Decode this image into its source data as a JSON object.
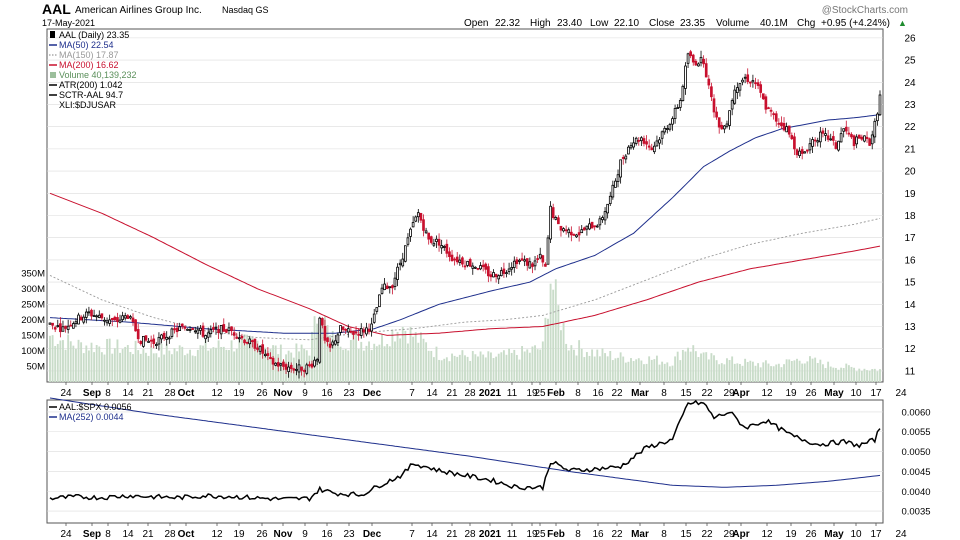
{
  "header": {
    "symbol": "AAL",
    "company": "American Airlines Group Inc.",
    "exchange": "Nasdaq GS",
    "date": "17-May-2021",
    "watermark": "@StockCharts.com",
    "open_label": "Open",
    "open": "22.32",
    "high_label": "High",
    "high": "23.40",
    "low_label": "Low",
    "low": "22.10",
    "close_label": "Close",
    "close": "23.35",
    "volume_label": "Volume",
    "volume": "40.1M",
    "chg_label": "Chg",
    "chg": "+0.95 (+4.24%)",
    "chg_arrow": "▲"
  },
  "legend": [
    {
      "label": "AAL (Daily) 23.35",
      "color": "#000000",
      "style": "candle-icon"
    },
    {
      "label": "MA(50) 22.54",
      "color": "#1e2f8c",
      "style": "solid"
    },
    {
      "label": "MA(150) 17.87",
      "color": "#999999",
      "style": "dotted"
    },
    {
      "label": "MA(200) 16.62",
      "color": "#c8102e",
      "style": "solid"
    },
    {
      "label": "Volume 40,139,232",
      "color": "#9cbf9c",
      "style": "volume-icon"
    },
    {
      "label": "ATR(200) 1.042",
      "color": "#000000",
      "style": "solid"
    },
    {
      "label": "SCTR-AAL 94.7",
      "color": "#000000",
      "style": "solid"
    },
    {
      "label": "XLI:$DJUSAR",
      "color": "#000000",
      "style": "none"
    }
  ],
  "lower_legend": [
    {
      "label": "AAL:$SPX 0.0056",
      "color": "#000000"
    },
    {
      "label": "MA(252) 0.0044",
      "color": "#1e2f8c"
    }
  ],
  "colors": {
    "up": "#000000",
    "down": "#c8102e",
    "volume": "#c9dcc9",
    "ma50": "#1e2f8c",
    "ma150": "#999999",
    "ma200": "#c8102e",
    "grid": "#dcdcdc"
  },
  "chart_data": [
    {
      "type": "candlestick",
      "title": "AAL (Daily)",
      "y_ticks": [
        "26",
        "25",
        "24",
        "23",
        "22",
        "21",
        "20",
        "19",
        "18",
        "17",
        "16",
        "15",
        "14",
        "13",
        "12",
        "11"
      ],
      "ylim": [
        10.5,
        26.4
      ],
      "volume_ticks": [
        "350M",
        "300M",
        "250M",
        "200M",
        "150M",
        "100M",
        "50M"
      ],
      "x_ticks": [
        "24",
        "Sep",
        "8",
        "14",
        "21",
        "28",
        "Oct",
        "12",
        "19",
        "26",
        "Nov",
        "9",
        "16",
        "23",
        "Dec",
        "7",
        "14",
        "21",
        "28",
        "2021",
        "11",
        "19",
        "25",
        "Feb",
        "8",
        "16",
        "22",
        "Mar",
        "8",
        "15",
        "22",
        "29",
        "Apr",
        "12",
        "19",
        "26",
        "May",
        "10",
        "17",
        "24"
      ],
      "x_bold": [
        "Sep",
        "Oct",
        "Nov",
        "Dec",
        "2021",
        "Feb",
        "Mar",
        "Apr",
        "May"
      ],
      "price_anchors": [
        [
          0,
          13.1
        ],
        [
          5,
          12.9
        ],
        [
          10,
          13.3
        ],
        [
          15,
          13.6
        ],
        [
          20,
          13.4
        ],
        [
          25,
          13.2
        ],
        [
          30,
          13.5
        ],
        [
          35,
          12.4
        ],
        [
          40,
          12.3
        ],
        [
          45,
          12.6
        ],
        [
          50,
          12.9
        ],
        [
          55,
          13.0
        ],
        [
          60,
          12.6
        ],
        [
          65,
          12.9
        ],
        [
          70,
          12.8
        ],
        [
          75,
          12.4
        ],
        [
          80,
          12.1
        ],
        [
          85,
          11.4
        ],
        [
          90,
          11.2
        ],
        [
          95,
          11.1
        ],
        [
          100,
          11.2
        ],
        [
          103,
          11.6
        ],
        [
          104,
          13.5
        ],
        [
          106,
          12.3
        ],
        [
          108,
          12.0
        ],
        [
          112,
          12.9
        ],
        [
          116,
          12.7
        ],
        [
          120,
          12.8
        ],
        [
          124,
          13.0
        ],
        [
          128,
          14.7
        ],
        [
          132,
          14.9
        ],
        [
          136,
          16.2
        ],
        [
          140,
          17.6
        ],
        [
          142,
          18.1
        ],
        [
          146,
          16.9
        ],
        [
          150,
          16.8
        ],
        [
          155,
          16.1
        ],
        [
          160,
          15.9
        ],
        [
          165,
          15.7
        ],
        [
          170,
          15.3
        ],
        [
          175,
          15.5
        ],
        [
          180,
          16.0
        ],
        [
          183,
          15.9
        ],
        [
          186,
          15.8
        ],
        [
          189,
          16.1
        ],
        [
          191,
          15.6
        ],
        [
          193,
          18.3
        ],
        [
          196,
          17.5
        ],
        [
          200,
          17.3
        ],
        [
          204,
          17.2
        ],
        [
          208,
          17.5
        ],
        [
          212,
          17.7
        ],
        [
          216,
          18.8
        ],
        [
          220,
          20.4
        ],
        [
          224,
          21.3
        ],
        [
          228,
          21.5
        ],
        [
          232,
          21.0
        ],
        [
          236,
          21.7
        ],
        [
          240,
          22.4
        ],
        [
          243,
          23.2
        ],
        [
          246,
          25.3
        ],
        [
          248,
          24.9
        ],
        [
          252,
          25.0
        ],
        [
          255,
          23.2
        ],
        [
          258,
          22.0
        ],
        [
          261,
          22.2
        ],
        [
          264,
          23.8
        ],
        [
          268,
          24.2
        ],
        [
          272,
          24.0
        ],
        [
          276,
          22.9
        ],
        [
          280,
          22.3
        ],
        [
          284,
          21.9
        ],
        [
          288,
          20.9
        ],
        [
          290,
          20.7
        ],
        [
          294,
          21.4
        ],
        [
          297,
          21.6
        ],
        [
          300,
          21.5
        ],
        [
          303,
          21.1
        ],
        [
          306,
          21.9
        ],
        [
          310,
          21.3
        ],
        [
          313,
          21.5
        ],
        [
          316,
          21.3
        ],
        [
          318,
          22.1
        ],
        [
          320,
          23.35
        ]
      ],
      "volume_anchors": [
        [
          0,
          150
        ],
        [
          10,
          120
        ],
        [
          20,
          115
        ],
        [
          30,
          110
        ],
        [
          40,
          100
        ],
        [
          50,
          105
        ],
        [
          60,
          110
        ],
        [
          70,
          120
        ],
        [
          80,
          130
        ],
        [
          90,
          95
        ],
        [
          100,
          105
        ],
        [
          104,
          250
        ],
        [
          108,
          140
        ],
        [
          120,
          130
        ],
        [
          128,
          135
        ],
        [
          132,
          160
        ],
        [
          136,
          180
        ],
        [
          140,
          150
        ],
        [
          150,
          90
        ],
        [
          160,
          85
        ],
        [
          170,
          80
        ],
        [
          180,
          90
        ],
        [
          190,
          110
        ],
        [
          193,
          340
        ],
        [
          196,
          230
        ],
        [
          200,
          120
        ],
        [
          210,
          95
        ],
        [
          220,
          80
        ],
        [
          230,
          75
        ],
        [
          240,
          65
        ],
        [
          246,
          120
        ],
        [
          252,
          80
        ],
        [
          260,
          70
        ],
        [
          270,
          60
        ],
        [
          280,
          55
        ],
        [
          290,
          75
        ],
        [
          300,
          55
        ],
        [
          310,
          45
        ],
        [
          320,
          40
        ]
      ],
      "ma50_anchors": [
        [
          0,
          13.4
        ],
        [
          30,
          13.2
        ],
        [
          60,
          12.9
        ],
        [
          90,
          12.7
        ],
        [
          110,
          12.7
        ],
        [
          125,
          12.9
        ],
        [
          135,
          13.3
        ],
        [
          150,
          14.0
        ],
        [
          170,
          14.6
        ],
        [
          185,
          15.0
        ],
        [
          195,
          15.6
        ],
        [
          210,
          16.2
        ],
        [
          225,
          17.2
        ],
        [
          240,
          18.8
        ],
        [
          252,
          20.2
        ],
        [
          262,
          20.9
        ],
        [
          272,
          21.5
        ],
        [
          282,
          21.9
        ],
        [
          300,
          22.3
        ],
        [
          310,
          22.4
        ],
        [
          320,
          22.54
        ]
      ],
      "ma150_anchors": [
        [
          0,
          15.3
        ],
        [
          20,
          14.2
        ],
        [
          40,
          13.4
        ],
        [
          60,
          12.8
        ],
        [
          80,
          12.5
        ],
        [
          100,
          12.4
        ],
        [
          118,
          12.7
        ],
        [
          140,
          12.9
        ],
        [
          160,
          13.2
        ],
        [
          175,
          13.3
        ],
        [
          190,
          13.5
        ],
        [
          210,
          14.2
        ],
        [
          230,
          15.1
        ],
        [
          250,
          16.0
        ],
        [
          270,
          16.7
        ],
        [
          290,
          17.2
        ],
        [
          310,
          17.6
        ],
        [
          320,
          17.87
        ]
      ],
      "ma200_anchors": [
        [
          0,
          19.0
        ],
        [
          20,
          18.1
        ],
        [
          40,
          17.0
        ],
        [
          60,
          15.8
        ],
        [
          80,
          14.7
        ],
        [
          100,
          13.8
        ],
        [
          115,
          13.0
        ],
        [
          130,
          12.6
        ],
        [
          150,
          12.7
        ],
        [
          170,
          12.9
        ],
        [
          190,
          13.0
        ],
        [
          210,
          13.5
        ],
        [
          230,
          14.2
        ],
        [
          250,
          15.0
        ],
        [
          270,
          15.6
        ],
        [
          290,
          16.0
        ],
        [
          310,
          16.4
        ],
        [
          320,
          16.62
        ]
      ]
    },
    {
      "type": "line",
      "title": "AAL:$SPX",
      "y_ticks": [
        "0.0060",
        "0.0055",
        "0.0050",
        "0.0045",
        "0.0040",
        "0.0035"
      ],
      "ylim": [
        0.0032,
        0.0063
      ],
      "series": [
        {
          "name": "AAL:$SPX",
          "color": "#000000",
          "anchors": [
            [
              0,
              0.00382
            ],
            [
              10,
              0.00386
            ],
            [
              20,
              0.00384
            ],
            [
              30,
              0.00389
            ],
            [
              40,
              0.00386
            ],
            [
              50,
              0.00384
            ],
            [
              60,
              0.00389
            ],
            [
              70,
              0.00387
            ],
            [
              80,
              0.00383
            ],
            [
              90,
              0.0038
            ],
            [
              100,
              0.00382
            ],
            [
              104,
              0.00405
            ],
            [
              110,
              0.00395
            ],
            [
              120,
              0.00391
            ],
            [
              128,
              0.00418
            ],
            [
              136,
              0.00442
            ],
            [
              140,
              0.0047
            ],
            [
              146,
              0.0046
            ],
            [
              150,
              0.00452
            ],
            [
              160,
              0.0044
            ],
            [
              170,
              0.00428
            ],
            [
              180,
              0.0041
            ],
            [
              190,
              0.0041
            ],
            [
              193,
              0.00475
            ],
            [
              200,
              0.00452
            ],
            [
              210,
              0.00456
            ],
            [
              220,
              0.00462
            ],
            [
              230,
              0.0051
            ],
            [
              240,
              0.0053
            ],
            [
              246,
              0.00622
            ],
            [
              252,
              0.00622
            ],
            [
              256,
              0.00585
            ],
            [
              262,
              0.006
            ],
            [
              268,
              0.0056
            ],
            [
              276,
              0.00578
            ],
            [
              286,
              0.0054
            ],
            [
              296,
              0.00518
            ],
            [
              306,
              0.00525
            ],
            [
              312,
              0.00515
            ],
            [
              318,
              0.0053
            ],
            [
              320,
              0.0056
            ]
          ]
        },
        {
          "name": "MA(252)",
          "color": "#1e2f8c",
          "anchors": [
            [
              0,
              0.00635
            ],
            [
              40,
              0.00595
            ],
            [
              80,
              0.0056
            ],
            [
              120,
              0.00525
            ],
            [
              160,
              0.0049
            ],
            [
              200,
              0.0045
            ],
            [
              240,
              0.00415
            ],
            [
              260,
              0.0041
            ],
            [
              280,
              0.00415
            ],
            [
              300,
              0.00425
            ],
            [
              320,
              0.0044
            ]
          ]
        }
      ]
    }
  ]
}
